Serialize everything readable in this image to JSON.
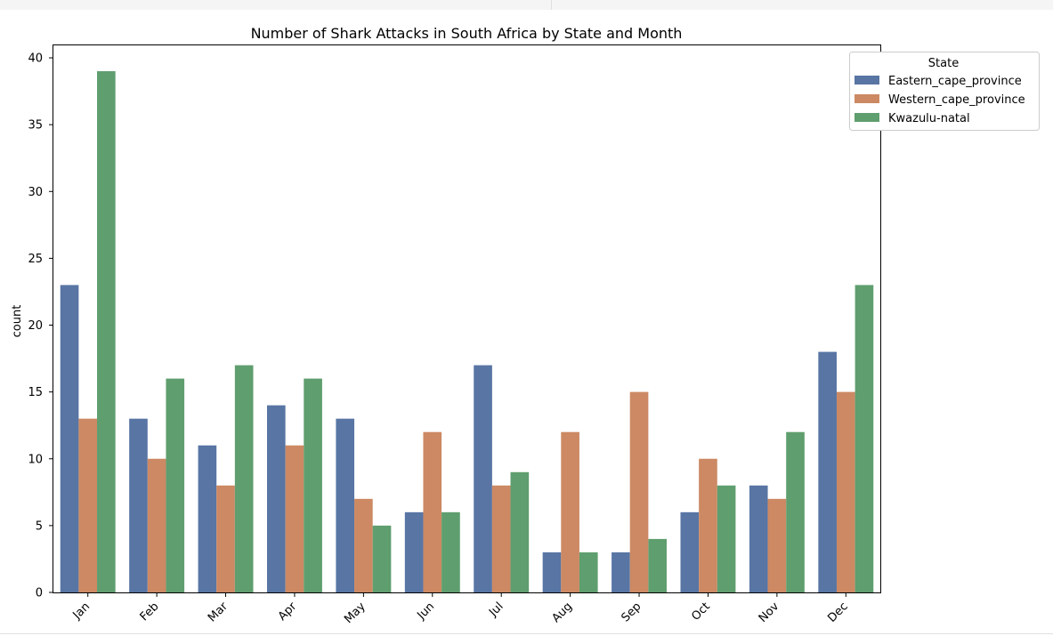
{
  "colors": {
    "Eastern_cape_province": "#5875a4",
    "Western_cape_province": "#cc8963",
    "Kwazulu-natal": "#5f9e6e"
  },
  "chart_data": {
    "type": "bar",
    "title": "Number of Shark Attacks in South Africa by State and Month",
    "xlabel": "",
    "ylabel": "count",
    "ylim": [
      0,
      41
    ],
    "yticks": [
      0,
      5,
      10,
      15,
      20,
      25,
      30,
      35,
      40
    ],
    "categories": [
      "Jan",
      "Feb",
      "Mar",
      "Apr",
      "May",
      "Jun",
      "Jul",
      "Aug",
      "Sep",
      "Oct",
      "Nov",
      "Dec"
    ],
    "series": [
      {
        "name": "Eastern_cape_province",
        "values": [
          23,
          13,
          11,
          14,
          13,
          6,
          17,
          3,
          3,
          6,
          8,
          18
        ]
      },
      {
        "name": "Western_cape_province",
        "values": [
          13,
          10,
          8,
          11,
          7,
          12,
          8,
          12,
          15,
          10,
          7,
          15
        ]
      },
      {
        "name": "Kwazulu-natal",
        "values": [
          39,
          16,
          17,
          16,
          5,
          6,
          9,
          3,
          4,
          8,
          12,
          23
        ]
      }
    ],
    "legend": {
      "title": "State",
      "position": "top-right"
    },
    "grid": false
  }
}
